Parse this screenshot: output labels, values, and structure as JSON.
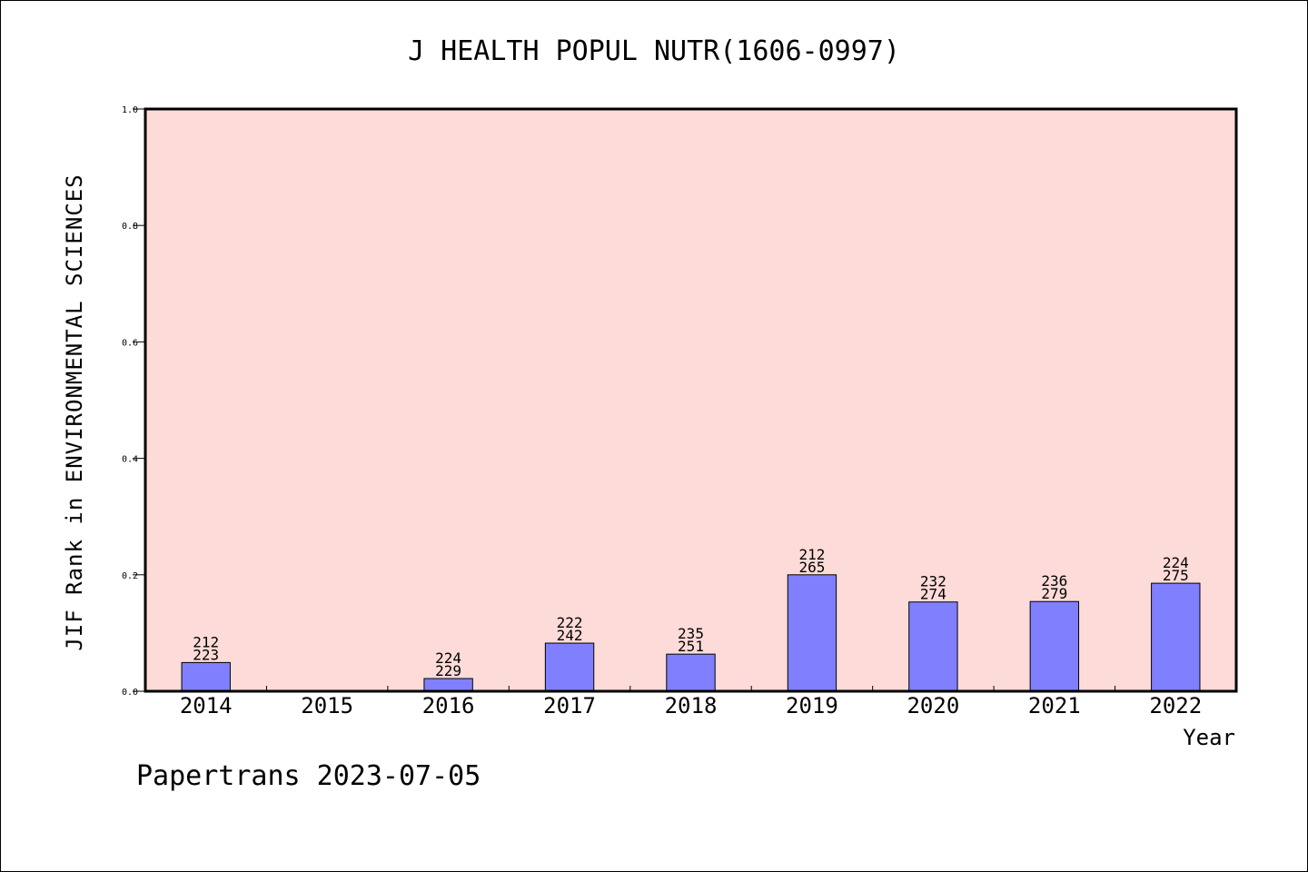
{
  "chart_data": {
    "type": "bar",
    "title": "J HEALTH POPUL NUTR(1606-0997)",
    "xlabel": "Year",
    "ylabel": "JIF Rank in ENVIRONMENTAL SCIENCES",
    "ylim": [
      0,
      1.0
    ],
    "yticks": [
      "0.0",
      "0.2",
      "0.4",
      "0.6",
      "0.8",
      "1.0"
    ],
    "categories": [
      "2014",
      "2015",
      "2016",
      "2017",
      "2018",
      "2019",
      "2020",
      "2021",
      "2022"
    ],
    "values": [
      0.0493,
      null,
      0.0218,
      0.0826,
      0.0637,
      0.2,
      0.1533,
      0.1541,
      0.1855
    ],
    "bar_labels": [
      [
        "212",
        "223"
      ],
      null,
      [
        "224",
        "229"
      ],
      [
        "222",
        "242"
      ],
      [
        "235",
        "251"
      ],
      [
        "212",
        "265"
      ],
      [
        "232",
        "274"
      ],
      [
        "236",
        "279"
      ],
      [
        "224",
        "275"
      ]
    ],
    "grid": false,
    "plot_background": "#fddbd8",
    "bar_color": "#8080ff"
  },
  "footer": "Papertrans 2023-07-05"
}
